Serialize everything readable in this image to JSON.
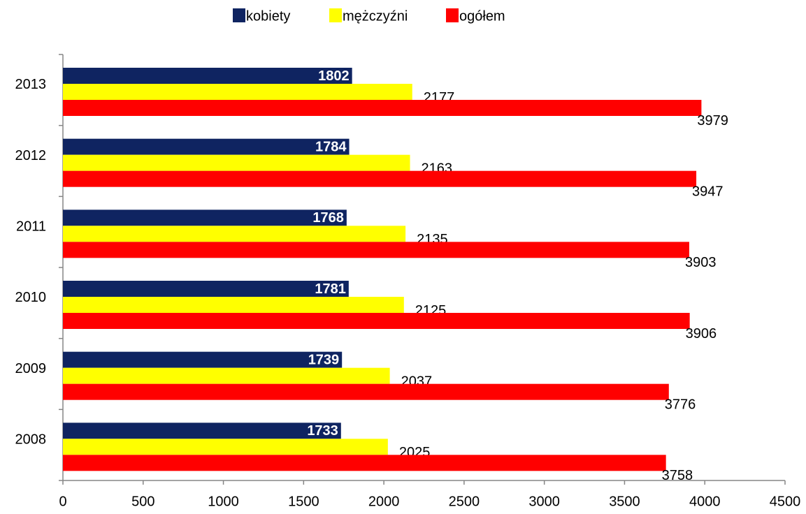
{
  "chart_data": {
    "type": "barh",
    "categories": [
      "2008",
      "2009",
      "2010",
      "2011",
      "2012",
      "2013"
    ],
    "series": [
      {
        "name": "kobiety",
        "color": "#0f2461",
        "values": [
          1733,
          1739,
          1781,
          1768,
          1784,
          1802
        ]
      },
      {
        "name": "mężczyźni",
        "color": "#ffff00",
        "values": [
          2025,
          2037,
          2125,
          2135,
          2163,
          2177
        ]
      },
      {
        "name": "ogółem",
        "color": "#ff0000",
        "values": [
          3758,
          3776,
          3906,
          3903,
          3947,
          3979
        ]
      }
    ],
    "xlim": [
      0,
      4500
    ],
    "xticks": [
      0,
      500,
      1000,
      1500,
      2000,
      2500,
      3000,
      3500,
      4000,
      4500
    ],
    "legend": "top"
  }
}
